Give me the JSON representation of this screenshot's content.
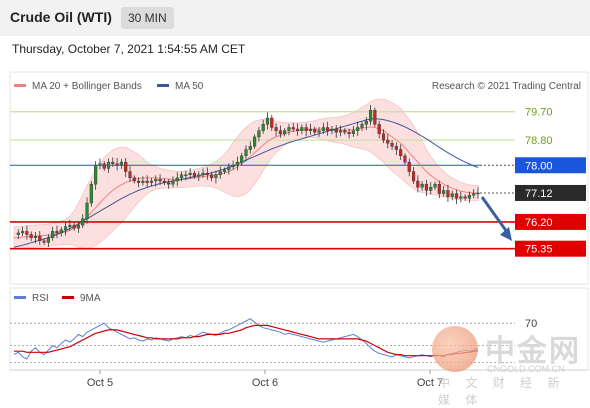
{
  "header": {
    "instrument": "Crude Oil (WTI)",
    "timeframe": "30 MIN",
    "datetime": "Thursday, October 7, 2021 1:54:55 AM CET"
  },
  "legend": {
    "ma20_label": "MA 20 + Bollinger Bands",
    "ma50_label": "MA 50",
    "credit": "Research © 2021 Trading Central",
    "ma20_color": "#f08080",
    "ma50_color": "#3b5998"
  },
  "rsi_legend": {
    "rsi_label": "RSI",
    "ma_label": "9MA",
    "rsi_color": "#5b7fd6",
    "ma_color": "#cc0000"
  },
  "watermark": {
    "big": "中金网",
    "url": "CNGOLD.COM.CN",
    "sub": "中 文 财 经 新 媒 体"
  },
  "chart_data": {
    "type": "line",
    "series_style": "candlestick",
    "ylim": [
      74.8,
      80.2
    ],
    "current_price": 77.12,
    "levels": [
      {
        "value": 79.7,
        "label": "79.70",
        "kind": "resistance",
        "color": "#8bbf3a"
      },
      {
        "value": 78.8,
        "label": "78.80",
        "kind": "resistance",
        "color": "#8bbf3a"
      },
      {
        "value": 78.0,
        "label": "78.00",
        "kind": "pivot",
        "color": "#1a56db"
      },
      {
        "value": 77.12,
        "label": "77.12",
        "kind": "current",
        "color": "#2a2a2a"
      },
      {
        "value": 76.2,
        "label": "76.20",
        "kind": "support",
        "color": "#e00000"
      },
      {
        "value": 75.35,
        "label": "75.35",
        "kind": "support",
        "color": "#e00000"
      }
    ],
    "x_ticks": [
      "Oct 5",
      "Oct 6",
      "Oct 7"
    ],
    "price_path": [
      75.8,
      75.85,
      75.9,
      75.8,
      75.7,
      75.75,
      75.6,
      75.55,
      75.7,
      75.9,
      75.85,
      75.95,
      76.05,
      76.1,
      76.0,
      76.1,
      76.3,
      76.8,
      77.4,
      78.0,
      78.05,
      77.9,
      78.1,
      78.05,
      78.0,
      78.1,
      77.8,
      77.6,
      77.5,
      77.45,
      77.5,
      77.45,
      77.5,
      77.55,
      77.5,
      77.45,
      77.4,
      77.5,
      77.6,
      77.7,
      77.7,
      77.75,
      77.65,
      77.7,
      77.75,
      77.7,
      77.6,
      77.7,
      77.8,
      77.85,
      77.95,
      78.0,
      78.1,
      78.3,
      78.5,
      78.6,
      78.9,
      79.1,
      79.3,
      79.5,
      79.2,
      79.1,
      79.0,
      79.1,
      79.2,
      79.15,
      79.1,
      79.2,
      79.1,
      79.15,
      79.05,
      79.1,
      79.2,
      79.1,
      79.15,
      79.05,
      79.1,
      79.05,
      79.0,
      79.1,
      79.2,
      79.3,
      79.4,
      79.75,
      79.3,
      79.0,
      78.8,
      78.7,
      78.6,
      78.5,
      78.3,
      78.1,
      77.8,
      77.5,
      77.3,
      77.4,
      77.2,
      77.3,
      77.4,
      77.1,
      77.2,
      77.0,
      77.1,
      76.95,
      77.0,
      76.95,
      77.05,
      77.1,
      77.12
    ],
    "ma20": [
      75.7,
      75.7,
      75.72,
      75.73,
      75.74,
      75.75,
      75.76,
      75.77,
      75.78,
      75.8,
      75.82,
      75.85,
      75.88,
      75.93,
      76.0,
      76.1,
      76.22,
      76.35,
      76.5,
      76.65,
      76.8,
      76.95,
      77.08,
      77.2,
      77.3,
      77.38,
      77.45,
      77.5,
      77.55,
      77.58,
      77.6,
      77.6,
      77.6,
      77.6,
      77.58,
      77.57,
      77.56,
      77.55,
      77.55,
      77.55,
      77.56,
      77.58,
      77.6,
      77.62,
      77.64,
      77.66,
      77.68,
      77.7,
      77.72,
      77.75,
      77.8,
      77.87,
      77.95,
      78.05,
      78.15,
      78.27,
      78.4,
      78.52,
      78.64,
      78.76,
      78.84,
      78.9,
      78.95,
      79.0,
      79.05,
      79.08,
      79.1,
      79.12,
      79.13,
      79.14,
      79.15,
      79.15,
      79.15,
      79.14,
      79.13,
      79.12,
      79.12,
      79.12,
      79.12,
      79.13,
      79.15,
      79.18,
      79.2,
      79.22,
      79.2,
      79.15,
      79.1,
      79.0,
      78.9,
      78.8,
      78.7,
      78.55,
      78.4,
      78.25,
      78.1,
      77.95,
      77.8,
      77.68,
      77.58,
      77.48,
      77.4,
      77.33,
      77.27,
      77.22,
      77.18,
      77.15,
      77.13,
      77.12,
      77.12
    ],
    "ma50": [
      75.4,
      75.43,
      75.46,
      75.5,
      75.54,
      75.58,
      75.62,
      75.66,
      75.7,
      75.75,
      75.8,
      75.86,
      75.92,
      75.99,
      76.06,
      76.14,
      76.22,
      76.3,
      76.38,
      76.46,
      76.54,
      76.62,
      76.7,
      76.78,
      76.86,
      76.94,
      77.01,
      77.08,
      77.14,
      77.2,
      77.25,
      77.3,
      77.34,
      77.38,
      77.42,
      77.45,
      77.48,
      77.5,
      77.52,
      77.55,
      77.58,
      77.61,
      77.64,
      77.67,
      77.7,
      77.73,
      77.76,
      77.8,
      77.84,
      77.88,
      77.93,
      77.98,
      78.04,
      78.1,
      78.16,
      78.22,
      78.28,
      78.34,
      78.4,
      78.46,
      78.52,
      78.57,
      78.62,
      78.67,
      78.72,
      78.76,
      78.8,
      78.84,
      78.88,
      78.92,
      78.96,
      79.0,
      79.04,
      79.08,
      79.12,
      79.16,
      79.2,
      79.24,
      79.28,
      79.32,
      79.36,
      79.4,
      79.44,
      79.47,
      79.48,
      79.47,
      79.45,
      79.42,
      79.38,
      79.33,
      79.28,
      79.22,
      79.15,
      79.08,
      79.0,
      78.92,
      78.84,
      78.75,
      78.66,
      78.57,
      78.48,
      78.4,
      78.32,
      78.24,
      78.17,
      78.1,
      78.04,
      77.98,
      77.93
    ],
    "bb_width": [
      0.35,
      0.35,
      0.35,
      0.35,
      0.35,
      0.35,
      0.35,
      0.35,
      0.35,
      0.35,
      0.36,
      0.38,
      0.4,
      0.45,
      0.55,
      0.7,
      0.85,
      1.0,
      1.1,
      1.2,
      1.25,
      1.3,
      1.3,
      1.28,
      1.25,
      1.2,
      1.12,
      1.0,
      0.88,
      0.75,
      0.62,
      0.5,
      0.42,
      0.36,
      0.32,
      0.3,
      0.28,
      0.27,
      0.26,
      0.26,
      0.26,
      0.26,
      0.27,
      0.28,
      0.3,
      0.33,
      0.37,
      0.42,
      0.5,
      0.6,
      0.72,
      0.85,
      0.95,
      1.02,
      1.05,
      1.05,
      1.0,
      0.92,
      0.82,
      0.72,
      0.6,
      0.5,
      0.42,
      0.36,
      0.3,
      0.27,
      0.25,
      0.24,
      0.24,
      0.25,
      0.27,
      0.3,
      0.33,
      0.36,
      0.38,
      0.4,
      0.42,
      0.45,
      0.5,
      0.55,
      0.6,
      0.66,
      0.72,
      0.8,
      0.88,
      0.95,
      1.0,
      1.05,
      1.08,
      1.1,
      1.1,
      1.08,
      1.05,
      1.0,
      0.92,
      0.82,
      0.7,
      0.6,
      0.52,
      0.45,
      0.4,
      0.36,
      0.33,
      0.3,
      0.28,
      0.26,
      0.25,
      0.24,
      0.24
    ],
    "forecast": {
      "from": 77.12,
      "to": 75.6,
      "direction": "down"
    },
    "rsi": {
      "level": 70,
      "level_label": "70",
      "values": [
        42,
        44,
        40,
        38,
        45,
        48,
        44,
        42,
        46,
        50,
        48,
        52,
        55,
        53,
        56,
        60,
        58,
        62,
        64,
        66,
        68,
        70,
        66,
        64,
        62,
        60,
        58,
        56,
        57,
        55,
        54,
        56,
        55,
        57,
        56,
        55,
        54,
        56,
        57,
        58,
        57,
        59,
        58,
        60,
        62,
        61,
        60,
        59,
        61,
        63,
        64,
        66,
        68,
        70,
        72,
        74,
        71,
        68,
        66,
        65,
        64,
        63,
        62,
        60,
        61,
        60,
        59,
        58,
        57,
        56,
        55,
        54,
        53,
        54,
        55,
        56,
        57,
        58,
        59,
        60,
        58,
        55,
        52,
        48,
        45,
        43,
        42,
        41,
        40,
        42,
        41,
        40,
        39,
        40,
        41,
        42,
        41,
        40,
        42,
        41,
        40,
        42,
        43,
        44,
        45,
        46,
        45,
        46,
        47
      ],
      "ma": [
        45,
        45,
        45,
        44,
        44,
        44,
        44,
        44,
        44,
        45,
        46,
        47,
        48,
        49,
        51,
        53,
        55,
        57,
        59,
        61,
        62,
        63,
        64,
        64,
        64,
        63,
        62,
        61,
        60,
        59,
        58,
        57,
        57,
        56,
        56,
        56,
        56,
        56,
        56,
        57,
        57,
        57,
        58,
        58,
        59,
        60,
        60,
        60,
        60,
        61,
        61,
        62,
        63,
        64,
        66,
        67,
        68,
        68,
        68,
        68,
        67,
        66,
        65,
        64,
        63,
        62,
        61,
        60,
        59,
        58,
        57,
        56,
        56,
        56,
        56,
        56,
        56,
        56,
        56,
        56,
        56,
        55,
        54,
        52,
        50,
        48,
        46,
        44,
        43,
        42,
        42,
        41,
        41,
        41,
        41,
        41,
        41,
        41,
        41,
        41,
        41,
        42,
        42,
        43,
        43,
        44,
        44,
        45,
        45
      ]
    }
  }
}
